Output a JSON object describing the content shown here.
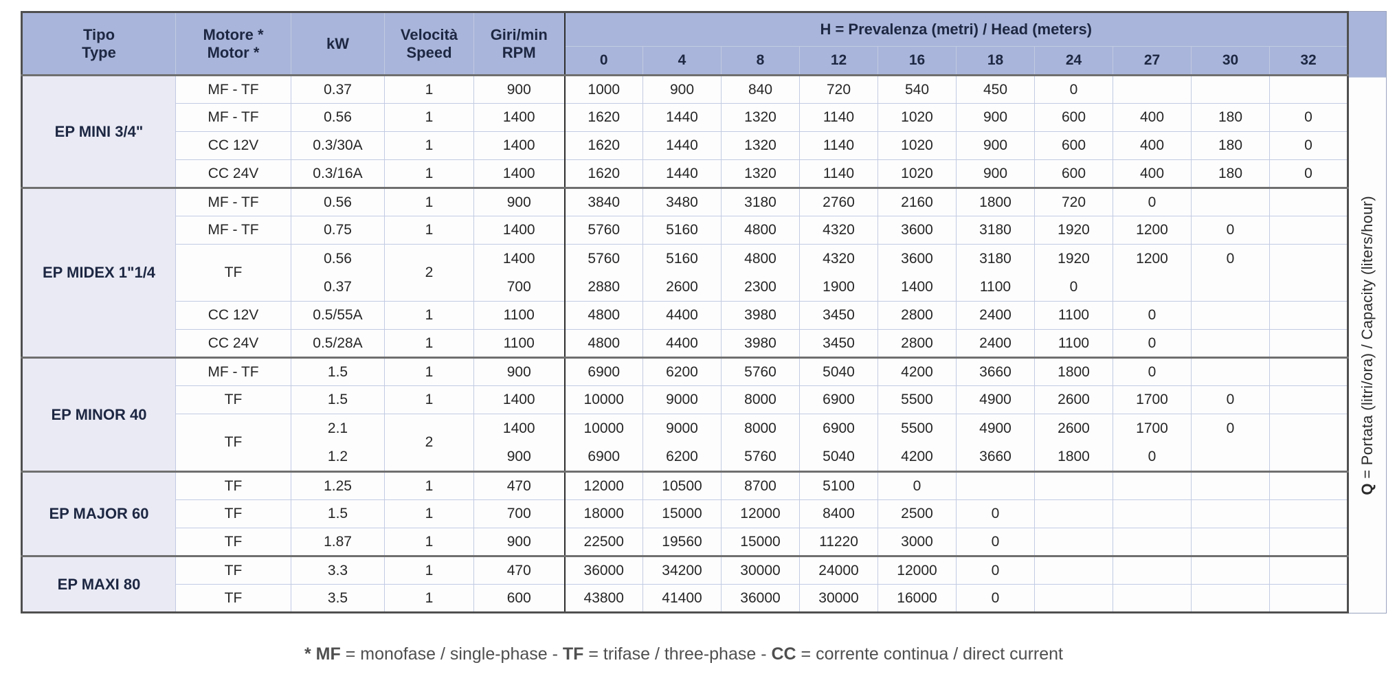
{
  "colors": {
    "header_bg": "#a9b5da",
    "tipo_col_bg": "#e9eaf4",
    "grid_light": "#c2cbe2",
    "grid_dark": "#4f4f4f",
    "header_text": "#1d2742",
    "body_text": "#262626"
  },
  "columns": {
    "tipo": [
      "Tipo",
      "Type"
    ],
    "motore": [
      "Motore *",
      "Motor *"
    ],
    "kw": [
      "kW"
    ],
    "velocita": [
      "Velocità",
      "Speed"
    ],
    "rpm": [
      "Giri/min",
      "RPM"
    ]
  },
  "h_header": {
    "segments": [
      {
        "text": "H",
        "bold": true
      },
      {
        "text": " = Prevalenza (metri) / Head (meters)",
        "bold": false
      }
    ],
    "ticks": [
      "0",
      "4",
      "8",
      "12",
      "16",
      "18",
      "24",
      "27",
      "30",
      "32"
    ]
  },
  "q_label": {
    "segments": [
      {
        "text": "Q",
        "bold": true
      },
      {
        "text": " = Portata (litri/ora) / Capacity (liters/hour)",
        "bold": false
      }
    ]
  },
  "groups": [
    {
      "type": "EP MINI 3/4\"",
      "rows": [
        {
          "motor": "MF - TF",
          "kw": [
            "0.37"
          ],
          "speed": "1",
          "rpm": [
            "900"
          ],
          "values": [
            [
              "1000",
              "900",
              "840",
              "720",
              "540",
              "450",
              "0",
              "",
              "",
              ""
            ]
          ]
        },
        {
          "motor": "MF - TF",
          "kw": [
            "0.56"
          ],
          "speed": "1",
          "rpm": [
            "1400"
          ],
          "values": [
            [
              "1620",
              "1440",
              "1320",
              "1140",
              "1020",
              "900",
              "600",
              "400",
              "180",
              "0"
            ]
          ]
        },
        {
          "motor": "CC 12V",
          "kw": [
            "0.3/30A"
          ],
          "speed": "1",
          "rpm": [
            "1400"
          ],
          "values": [
            [
              "1620",
              "1440",
              "1320",
              "1140",
              "1020",
              "900",
              "600",
              "400",
              "180",
              "0"
            ]
          ]
        },
        {
          "motor": "CC 24V",
          "kw": [
            "0.3/16A"
          ],
          "speed": "1",
          "rpm": [
            "1400"
          ],
          "values": [
            [
              "1620",
              "1440",
              "1320",
              "1140",
              "1020",
              "900",
              "600",
              "400",
              "180",
              "0"
            ]
          ]
        }
      ]
    },
    {
      "type": "EP MIDEX 1\"1/4",
      "rows": [
        {
          "motor": "MF - TF",
          "kw": [
            "0.56"
          ],
          "speed": "1",
          "rpm": [
            "900"
          ],
          "values": [
            [
              "3840",
              "3480",
              "3180",
              "2760",
              "2160",
              "1800",
              "720",
              "0",
              "",
              ""
            ]
          ]
        },
        {
          "motor": "MF - TF",
          "kw": [
            "0.75"
          ],
          "speed": "1",
          "rpm": [
            "1400"
          ],
          "values": [
            [
              "5760",
              "5160",
              "4800",
              "4320",
              "3600",
              "3180",
              "1920",
              "1200",
              "0",
              ""
            ]
          ]
        },
        {
          "motor": "TF",
          "kw": [
            "0.56",
            "0.37"
          ],
          "speed": "2",
          "rpm": [
            "1400",
            "700"
          ],
          "values": [
            [
              "5760",
              "5160",
              "4800",
              "4320",
              "3600",
              "3180",
              "1920",
              "1200",
              "0",
              ""
            ],
            [
              "2880",
              "2600",
              "2300",
              "1900",
              "1400",
              "1100",
              "0",
              "",
              "",
              ""
            ]
          ]
        },
        {
          "motor": "CC 12V",
          "kw": [
            "0.5/55A"
          ],
          "speed": "1",
          "rpm": [
            "1100"
          ],
          "values": [
            [
              "4800",
              "4400",
              "3980",
              "3450",
              "2800",
              "2400",
              "1100",
              "0",
              "",
              ""
            ]
          ]
        },
        {
          "motor": "CC 24V",
          "kw": [
            "0.5/28A"
          ],
          "speed": "1",
          "rpm": [
            "1100"
          ],
          "values": [
            [
              "4800",
              "4400",
              "3980",
              "3450",
              "2800",
              "2400",
              "1100",
              "0",
              "",
              ""
            ]
          ]
        }
      ]
    },
    {
      "type": "EP MINOR 40",
      "rows": [
        {
          "motor": "MF - TF",
          "kw": [
            "1.5"
          ],
          "speed": "1",
          "rpm": [
            "900"
          ],
          "values": [
            [
              "6900",
              "6200",
              "5760",
              "5040",
              "4200",
              "3660",
              "1800",
              "0",
              "",
              ""
            ]
          ]
        },
        {
          "motor": "TF",
          "kw": [
            "1.5"
          ],
          "speed": "1",
          "rpm": [
            "1400"
          ],
          "values": [
            [
              "10000",
              "9000",
              "8000",
              "6900",
              "5500",
              "4900",
              "2600",
              "1700",
              "0",
              ""
            ]
          ]
        },
        {
          "motor": "TF",
          "kw": [
            "2.1",
            "1.2"
          ],
          "speed": "2",
          "rpm": [
            "1400",
            "900"
          ],
          "values": [
            [
              "10000",
              "9000",
              "8000",
              "6900",
              "5500",
              "4900",
              "2600",
              "1700",
              "0",
              ""
            ],
            [
              "6900",
              "6200",
              "5760",
              "5040",
              "4200",
              "3660",
              "1800",
              "0",
              "",
              ""
            ]
          ]
        }
      ]
    },
    {
      "type": "EP MAJOR 60",
      "rows": [
        {
          "motor": "TF",
          "kw": [
            "1.25"
          ],
          "speed": "1",
          "rpm": [
            "470"
          ],
          "values": [
            [
              "12000",
              "10500",
              "8700",
              "5100",
              "0",
              "",
              "",
              "",
              "",
              ""
            ]
          ]
        },
        {
          "motor": "TF",
          "kw": [
            "1.5"
          ],
          "speed": "1",
          "rpm": [
            "700"
          ],
          "values": [
            [
              "18000",
              "15000",
              "12000",
              "8400",
              "2500",
              "0",
              "",
              "",
              "",
              ""
            ]
          ]
        },
        {
          "motor": "TF",
          "kw": [
            "1.87"
          ],
          "speed": "1",
          "rpm": [
            "900"
          ],
          "values": [
            [
              "22500",
              "19560",
              "15000",
              "11220",
              "3000",
              "0",
              "",
              "",
              "",
              ""
            ]
          ]
        }
      ]
    },
    {
      "type": "EP MAXI 80",
      "rows": [
        {
          "motor": "TF",
          "kw": [
            "3.3"
          ],
          "speed": "1",
          "rpm": [
            "470"
          ],
          "values": [
            [
              "36000",
              "34200",
              "30000",
              "24000",
              "12000",
              "0",
              "",
              "",
              "",
              ""
            ]
          ]
        },
        {
          "motor": "TF",
          "kw": [
            "3.5"
          ],
          "speed": "1",
          "rpm": [
            "600"
          ],
          "values": [
            [
              "43800",
              "41400",
              "36000",
              "30000",
              "16000",
              "0",
              "",
              "",
              "",
              ""
            ]
          ]
        }
      ]
    }
  ],
  "footnote": {
    "segments": [
      {
        "text": "* MF",
        "bold": true
      },
      {
        "text": " = monofase / single-phase - ",
        "bold": false
      },
      {
        "text": "TF",
        "bold": true
      },
      {
        "text": " = trifase / three-phase - ",
        "bold": false
      },
      {
        "text": "CC",
        "bold": true
      },
      {
        "text": " = corrente continua / direct current",
        "bold": false
      }
    ]
  }
}
